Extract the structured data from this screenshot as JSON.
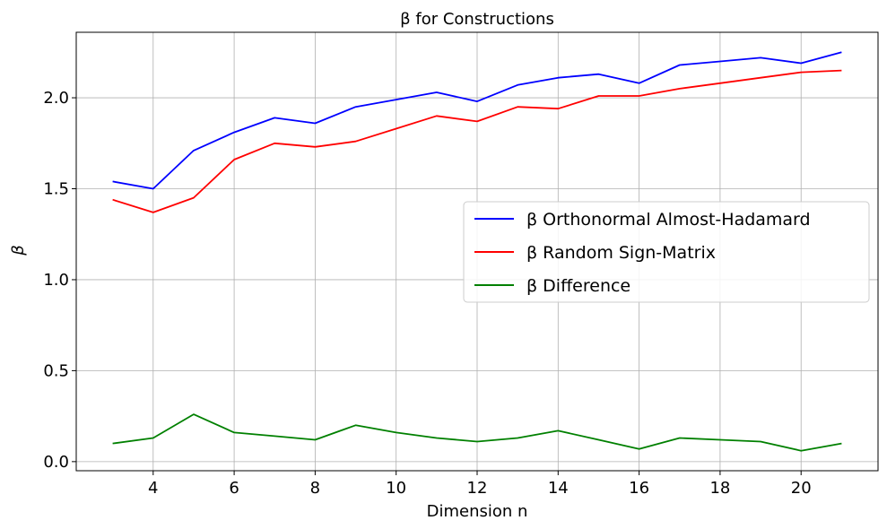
{
  "chart_data": {
    "type": "line",
    "title": "β for Constructions",
    "xlabel": "Dimension n",
    "ylabel": "β",
    "xlim": [
      2.1,
      21.9
    ],
    "ylim": [
      -0.05,
      2.36
    ],
    "xticks": [
      4,
      6,
      8,
      10,
      12,
      14,
      16,
      18,
      20
    ],
    "yticks": [
      0.0,
      0.5,
      1.0,
      1.5,
      2.0
    ],
    "ytick_labels": [
      "0.0",
      "0.5",
      "1.0",
      "1.5",
      "2.0"
    ],
    "grid": true,
    "legend_position": "center-right",
    "x": [
      3,
      4,
      5,
      6,
      7,
      8,
      9,
      10,
      11,
      12,
      13,
      14,
      15,
      16,
      17,
      18,
      19,
      20,
      21
    ],
    "series": [
      {
        "name": "β Orthonormal Almost-Hadamard",
        "color": "#0000ff",
        "values": [
          1.54,
          1.5,
          1.71,
          1.81,
          1.89,
          1.86,
          1.95,
          1.99,
          2.03,
          1.98,
          2.07,
          2.11,
          2.13,
          2.08,
          2.18,
          2.2,
          2.22,
          2.19,
          2.25
        ]
      },
      {
        "name": "β Random Sign-Matrix",
        "color": "#ff0000",
        "values": [
          1.44,
          1.37,
          1.45,
          1.66,
          1.75,
          1.73,
          1.76,
          1.83,
          1.9,
          1.87,
          1.95,
          1.94,
          2.01,
          2.01,
          2.05,
          2.08,
          2.11,
          2.14,
          2.15
        ]
      },
      {
        "name": "β Difference",
        "color": "#008000",
        "values": [
          0.1,
          0.13,
          0.26,
          0.16,
          0.14,
          0.12,
          0.2,
          0.16,
          0.13,
          0.11,
          0.13,
          0.17,
          0.12,
          0.07,
          0.13,
          0.12,
          0.11,
          0.06,
          0.1
        ]
      }
    ]
  }
}
